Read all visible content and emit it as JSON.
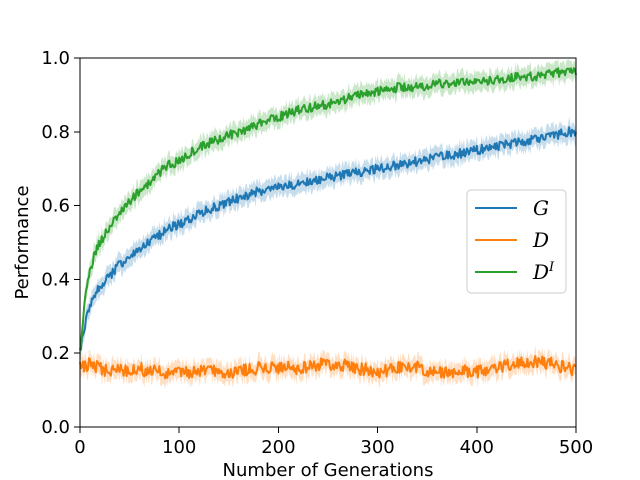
{
  "chart_data": {
    "type": "line",
    "title": "",
    "xlabel": "Number of Generations",
    "ylabel": "Performance",
    "xlim": [
      0,
      500
    ],
    "ylim": [
      0.0,
      1.0
    ],
    "xticks": [
      {
        "value": 0,
        "label": "0"
      },
      {
        "value": 100,
        "label": "100"
      },
      {
        "value": 200,
        "label": "200"
      },
      {
        "value": 300,
        "label": "300"
      },
      {
        "value": 400,
        "label": "400"
      },
      {
        "value": 500,
        "label": "500"
      }
    ],
    "yticks": [
      {
        "value": 0.0,
        "label": "0.0"
      },
      {
        "value": 0.2,
        "label": "0.2"
      },
      {
        "value": 0.4,
        "label": "0.4"
      },
      {
        "value": 0.6,
        "label": "0.6"
      },
      {
        "value": 0.8,
        "label": "0.8"
      },
      {
        "value": 1.0,
        "label": "1.0"
      }
    ],
    "grid": false,
    "legend_position": "center-right",
    "series": [
      {
        "name": "G",
        "superscript": "",
        "color": "#1f77b4",
        "band_half_width": 0.02,
        "x": [
          0,
          5,
          10,
          15,
          20,
          30,
          40,
          50,
          60,
          70,
          80,
          90,
          100,
          110,
          120,
          130,
          140,
          150,
          160,
          170,
          180,
          190,
          200,
          220,
          240,
          260,
          280,
          300,
          320,
          340,
          360,
          380,
          400,
          420,
          440,
          460,
          480,
          490,
          500
        ],
        "y": [
          0.2,
          0.28,
          0.32,
          0.36,
          0.38,
          0.41,
          0.44,
          0.46,
          0.48,
          0.5,
          0.52,
          0.54,
          0.55,
          0.56,
          0.58,
          0.59,
          0.6,
          0.61,
          0.62,
          0.63,
          0.64,
          0.64,
          0.65,
          0.66,
          0.67,
          0.68,
          0.69,
          0.7,
          0.71,
          0.72,
          0.73,
          0.74,
          0.75,
          0.76,
          0.77,
          0.78,
          0.79,
          0.8,
          0.8
        ]
      },
      {
        "name": "D",
        "superscript": "",
        "color": "#ff7f0e",
        "band_half_width": 0.02,
        "x": [
          0,
          10,
          20,
          30,
          40,
          50,
          60,
          70,
          80,
          90,
          100,
          120,
          140,
          160,
          180,
          200,
          220,
          240,
          260,
          280,
          300,
          320,
          340,
          360,
          380,
          400,
          420,
          440,
          460,
          480,
          500
        ],
        "y": [
          0.16,
          0.17,
          0.16,
          0.15,
          0.16,
          0.15,
          0.16,
          0.15,
          0.15,
          0.14,
          0.15,
          0.15,
          0.15,
          0.15,
          0.16,
          0.16,
          0.16,
          0.17,
          0.17,
          0.16,
          0.15,
          0.16,
          0.16,
          0.15,
          0.15,
          0.15,
          0.16,
          0.17,
          0.18,
          0.17,
          0.15
        ]
      },
      {
        "name": "D",
        "superscript": "I",
        "color": "#2ca02c",
        "band_half_width": 0.02,
        "x": [
          0,
          5,
          10,
          15,
          20,
          30,
          40,
          50,
          60,
          70,
          80,
          90,
          100,
          120,
          140,
          160,
          180,
          200,
          220,
          240,
          260,
          280,
          300,
          320,
          340,
          360,
          380,
          400,
          420,
          440,
          460,
          480,
          490,
          500
        ],
        "y": [
          0.2,
          0.35,
          0.42,
          0.47,
          0.5,
          0.54,
          0.58,
          0.61,
          0.64,
          0.66,
          0.69,
          0.71,
          0.72,
          0.76,
          0.78,
          0.8,
          0.82,
          0.84,
          0.86,
          0.87,
          0.88,
          0.9,
          0.91,
          0.92,
          0.92,
          0.93,
          0.93,
          0.94,
          0.94,
          0.95,
          0.95,
          0.96,
          0.96,
          0.96
        ]
      }
    ]
  }
}
